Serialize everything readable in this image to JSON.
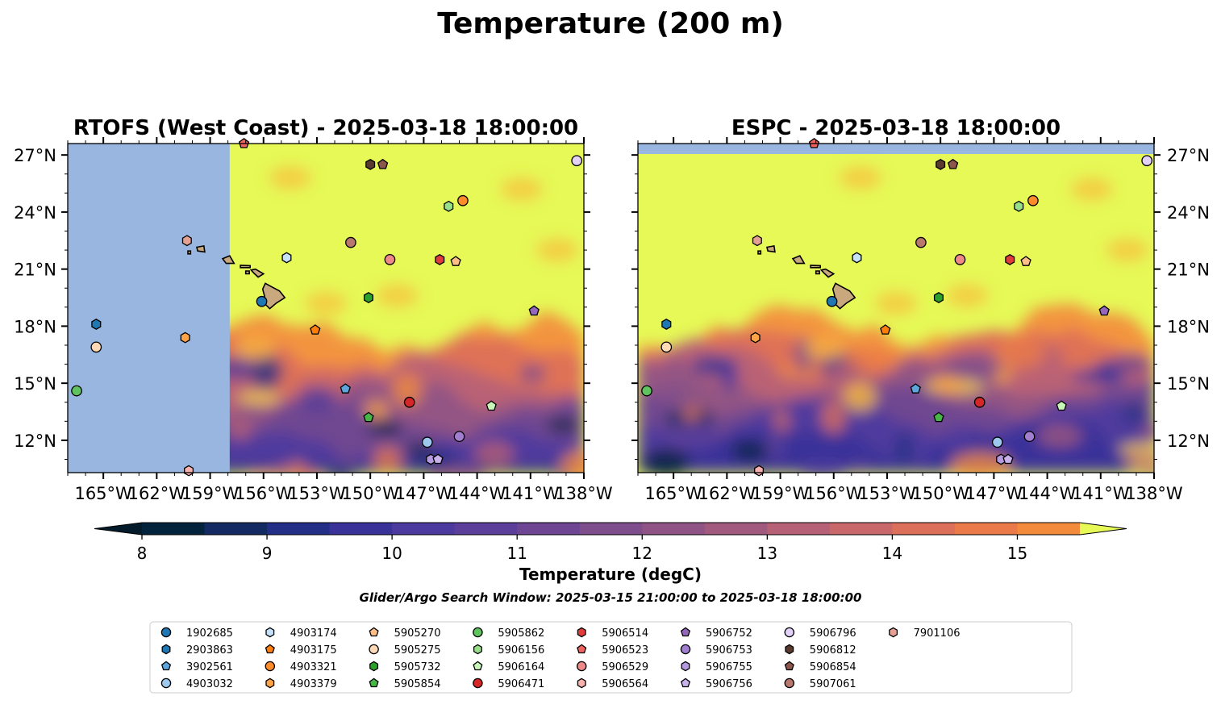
{
  "figure": {
    "suptitle": "Temperature (200 m)",
    "subtitle": "Glider/Argo Search Window: 2025-03-15 21:00:00 to 2025-03-18 18:00:00"
  },
  "colors": {
    "land_mask": "#98b6e0",
    "island_land": "#c8a87c",
    "warm": "#e6f957",
    "cmap": [
      "#03233c",
      "#142a63",
      "#232f86",
      "#393399",
      "#4c3a9e",
      "#5c3f9a",
      "#6d4593",
      "#7e4d8c",
      "#8f5385",
      "#a1597d",
      "#b66176",
      "#c9686a",
      "#dc705a",
      "#ea7a49",
      "#f38b3c",
      "#f7a33a",
      "#f9bb3d",
      "#f7d246",
      "#f0e84f"
    ],
    "extend_low": "#031b2a",
    "extend_high": "#e6f957"
  },
  "chart_data": [
    {
      "type": "heatmap",
      "title": "RTOFS (West Coast) - 2025-03-18 18:00:00",
      "xlim": [
        -167,
        -138
      ],
      "ylim": [
        10.3,
        27.6
      ],
      "xticks": [
        -165,
        -162,
        -159,
        -156,
        -153,
        -150,
        -147,
        -144,
        -141,
        -138
      ],
      "xtick_labels": [
        "165°W",
        "162°W",
        "159°W",
        "156°W",
        "153°W",
        "150°W",
        "147°W",
        "144°W",
        "141°W",
        "138°W"
      ],
      "yticks": [
        12,
        15,
        18,
        21,
        24,
        27
      ],
      "ytick_labels": [
        "12°N",
        "15°N",
        "18°N",
        "21°N",
        "24°N",
        "27°N"
      ],
      "ytick_side": "left",
      "masked_west_of_lon": -157.9,
      "cool_region_north_edge_lat": "about 16–18°N"
    },
    {
      "type": "heatmap",
      "title": "ESPC - 2025-03-18 18:00:00",
      "xlim": [
        -167,
        -138
      ],
      "ylim": [
        10.3,
        27.6
      ],
      "xticks": [
        -165,
        -162,
        -159,
        -156,
        -153,
        -150,
        -147,
        -144,
        -141,
        -138
      ],
      "xtick_labels": [
        "165°W",
        "162°W",
        "159°W",
        "156°W",
        "153°W",
        "150°W",
        "147°W",
        "144°W",
        "141°W",
        "138°W"
      ],
      "yticks": [
        12,
        15,
        18,
        21,
        24,
        27
      ],
      "ytick_labels": [
        "12°N",
        "15°N",
        "18°N",
        "21°N",
        "24°N",
        "27°N"
      ],
      "ytick_side": "right",
      "masked_north_of_lat": 27.05,
      "cool_region_north_edge_lat": "about 15–17°N"
    }
  ],
  "colorbar": {
    "label": "Temperature (degC)",
    "min": 8,
    "max": 15.5,
    "step": 0.5,
    "ticks": [
      8,
      9,
      10,
      11,
      12,
      13,
      14,
      15
    ],
    "tick_labels": [
      "8",
      "9",
      "10",
      "11",
      "12",
      "13",
      "14",
      "15"
    ],
    "extend": "both"
  },
  "floats": [
    {
      "id": "1902685",
      "marker": "circle",
      "color": "#1f77b4",
      "lon": -156.1,
      "lat": 19.3
    },
    {
      "id": "2903863",
      "marker": "hexagon",
      "color": "#1f77b4",
      "lon": -165.4,
      "lat": 18.1
    },
    {
      "id": "3902561",
      "marker": "pentagon",
      "color": "#5da5da",
      "lon": -151.4,
      "lat": 14.7
    },
    {
      "id": "4903032",
      "marker": "circle",
      "color": "#9ec9ee",
      "lon": -146.8,
      "lat": 11.9
    },
    {
      "id": "4903174",
      "marker": "hexagon",
      "color": "#c6e2fb",
      "lon": -154.7,
      "lat": 21.6
    },
    {
      "id": "4903175",
      "marker": "pentagon",
      "color": "#ff7f0e",
      "lon": -153.1,
      "lat": 17.8
    },
    {
      "id": "4903321",
      "marker": "circle",
      "color": "#ff8c2a",
      "lon": -144.8,
      "lat": 24.6
    },
    {
      "id": "4903379",
      "marker": "hexagon",
      "color": "#ffa347",
      "lon": -160.4,
      "lat": 17.4
    },
    {
      "id": "5905270",
      "marker": "pentagon",
      "color": "#ffbf86",
      "lon": -145.2,
      "lat": 21.4
    },
    {
      "id": "5905275",
      "marker": "circle",
      "color": "#ffd9b5",
      "lon": -165.4,
      "lat": 16.9
    },
    {
      "id": "5905732",
      "marker": "hexagon",
      "color": "#2ca02c",
      "lon": -150.1,
      "lat": 19.5
    },
    {
      "id": "5905854",
      "marker": "pentagon",
      "color": "#48b548",
      "lon": -150.1,
      "lat": 13.2
    },
    {
      "id": "5905862",
      "marker": "circle",
      "color": "#5fc45f",
      "lon": -166.5,
      "lat": 14.6
    },
    {
      "id": "5906156",
      "marker": "hexagon",
      "color": "#98df8a",
      "lon": -145.6,
      "lat": 24.3
    },
    {
      "id": "5906164",
      "marker": "pentagon",
      "color": "#c8f5b8",
      "lon": -143.2,
      "lat": 13.8
    },
    {
      "id": "5906471",
      "marker": "circle",
      "color": "#d62728",
      "lon": -147.8,
      "lat": 14.0
    },
    {
      "id": "5906514",
      "marker": "hexagon",
      "color": "#e03c3c",
      "lon": -146.1,
      "lat": 21.5
    },
    {
      "id": "5906523",
      "marker": "pentagon",
      "color": "#f0645f",
      "lon": -157.1,
      "lat": 27.6
    },
    {
      "id": "5906529",
      "marker": "circle",
      "color": "#f08a88",
      "lon": -148.9,
      "lat": 21.5
    },
    {
      "id": "5906564",
      "marker": "hexagon",
      "color": "#f9b2b0",
      "lon": -160.2,
      "lat": 10.4
    },
    {
      "id": "5906752",
      "marker": "pentagon",
      "color": "#9467bd",
      "lon": -140.8,
      "lat": 18.8
    },
    {
      "id": "5906753",
      "marker": "circle",
      "color": "#a27ed0",
      "lon": -145.0,
      "lat": 12.2
    },
    {
      "id": "5906755",
      "marker": "hexagon",
      "color": "#b69ae0",
      "lon": -146.6,
      "lat": 11.0
    },
    {
      "id": "5906756",
      "marker": "pentagon",
      "color": "#c9b2ec",
      "lon": -146.2,
      "lat": 11.0
    },
    {
      "id": "5906796",
      "marker": "circle",
      "color": "#e3d1f7",
      "lon": -138.4,
      "lat": 26.7
    },
    {
      "id": "5906812",
      "marker": "hexagon",
      "color": "#5a3a2e",
      "lon": -150.0,
      "lat": 26.5
    },
    {
      "id": "5906854",
      "marker": "pentagon",
      "color": "#8c564b",
      "lon": -149.3,
      "lat": 26.5
    },
    {
      "id": "5907061",
      "marker": "circle",
      "color": "#b8786e",
      "lon": -151.1,
      "lat": 22.4
    },
    {
      "id": "7901106",
      "marker": "hexagon",
      "color": "#e6a195",
      "lon": -160.3,
      "lat": 22.5
    }
  ],
  "islands": [
    {
      "name": "Hawaii",
      "ring": [
        [
          -155.9,
          20.25
        ],
        [
          -155.6,
          20.1
        ],
        [
          -155.1,
          19.85
        ],
        [
          -154.8,
          19.5
        ],
        [
          -155.3,
          19.2
        ],
        [
          -155.65,
          18.92
        ],
        [
          -155.9,
          19.15
        ],
        [
          -155.95,
          19.6
        ],
        [
          -156.05,
          19.95
        ]
      ]
    },
    {
      "name": "Maui",
      "ring": [
        [
          -156.7,
          20.95
        ],
        [
          -156.45,
          21.0
        ],
        [
          -156.0,
          20.75
        ],
        [
          -156.3,
          20.58
        ],
        [
          -156.55,
          20.8
        ]
      ]
    },
    {
      "name": "Molokai",
      "ring": [
        [
          -157.3,
          21.2
        ],
        [
          -156.75,
          21.18
        ],
        [
          -156.75,
          21.08
        ],
        [
          -157.3,
          21.08
        ]
      ]
    },
    {
      "name": "Lanai",
      "ring": [
        [
          -157.0,
          20.9
        ],
        [
          -156.8,
          20.9
        ],
        [
          -156.8,
          20.75
        ],
        [
          -157.0,
          20.75
        ]
      ]
    },
    {
      "name": "Oahu",
      "ring": [
        [
          -158.3,
          21.55
        ],
        [
          -157.9,
          21.7
        ],
        [
          -157.65,
          21.3
        ],
        [
          -158.1,
          21.3
        ]
      ]
    },
    {
      "name": "Kauai",
      "ring": [
        [
          -159.75,
          22.15
        ],
        [
          -159.35,
          22.22
        ],
        [
          -159.3,
          21.9
        ],
        [
          -159.7,
          21.95
        ]
      ]
    },
    {
      "name": "Niihau",
      "ring": [
        [
          -160.25,
          21.95
        ],
        [
          -160.1,
          21.95
        ],
        [
          -160.1,
          21.8
        ],
        [
          -160.25,
          21.8
        ]
      ]
    }
  ],
  "warm_blobs": [
    {
      "lon": -154.5,
      "lat": 25.8
    },
    {
      "lon": -141.5,
      "lat": 25.2
    },
    {
      "lon": -152.5,
      "lat": 19.2
    },
    {
      "lon": -148.5,
      "lat": 19.6
    },
    {
      "lon": -139.5,
      "lat": 22.0
    },
    {
      "lon": -156.5,
      "lat": 16.8
    }
  ]
}
